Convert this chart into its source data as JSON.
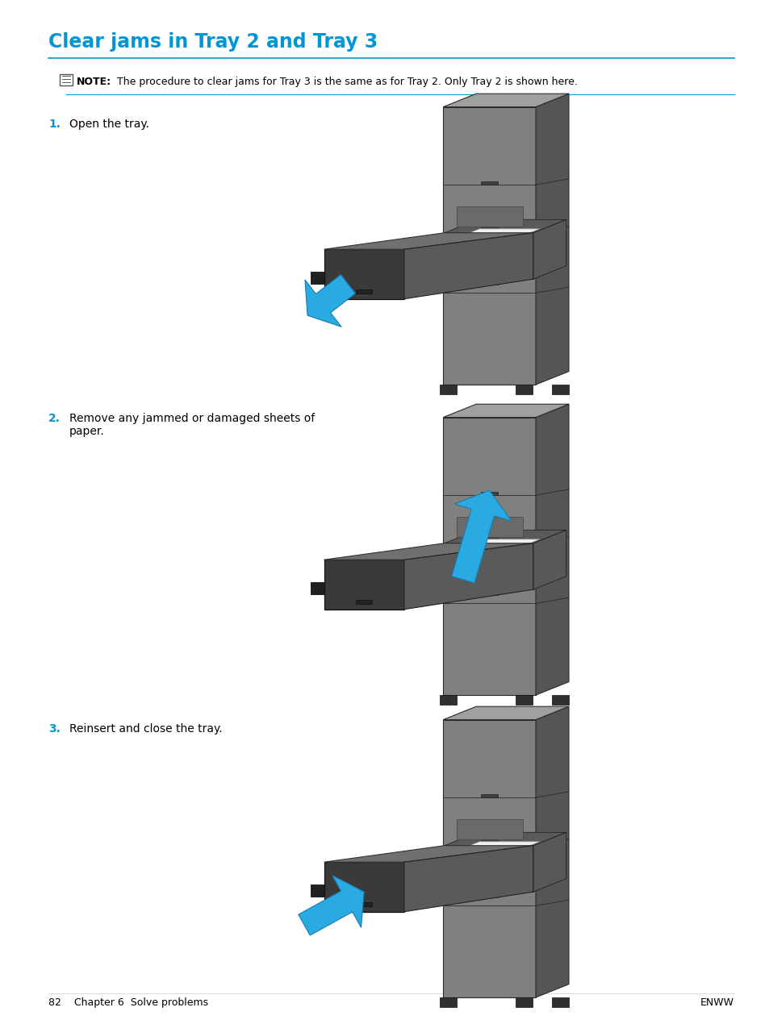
{
  "title": "Clear jams in Tray 2 and Tray 3",
  "title_color": "#0096D6",
  "title_fontsize": 17,
  "note_bold": "NOTE:",
  "note_text": "  The procedure to clear jams for Tray 3 is the same as for Tray 2. Only Tray 2 is shown here.",
  "note_fontsize": 9.0,
  "steps": [
    {
      "num": "1.",
      "text": "Open the tray."
    },
    {
      "num": "2.",
      "text": "Remove any jammed or damaged sheets of\npaper."
    },
    {
      "num": "3.",
      "text": "Reinsert and close the tray."
    }
  ],
  "step_fontsize": 10,
  "step_num_color": "#0096D6",
  "footer_left": "82    Chapter 6  Solve problems",
  "footer_right": "ENWW",
  "footer_fontsize": 9,
  "bg_color": "#ffffff",
  "line_color": "#0096D6",
  "arrow_color": "#29ABE2",
  "printer_colors": {
    "body_main": "#808080",
    "body_dark": "#555555",
    "body_light": "#a0a0a0",
    "body_top": "#666666",
    "tray_face": "#3a3a3a",
    "tray_top": "#707070",
    "tray_side": "#5a5a5a",
    "interior": "#484848",
    "paper": "#f0f0f0",
    "paper_edge": "#d8d8d8",
    "right_body": "#8a8a8a",
    "outline": "#2a2a2a",
    "wheel": "#303030"
  }
}
